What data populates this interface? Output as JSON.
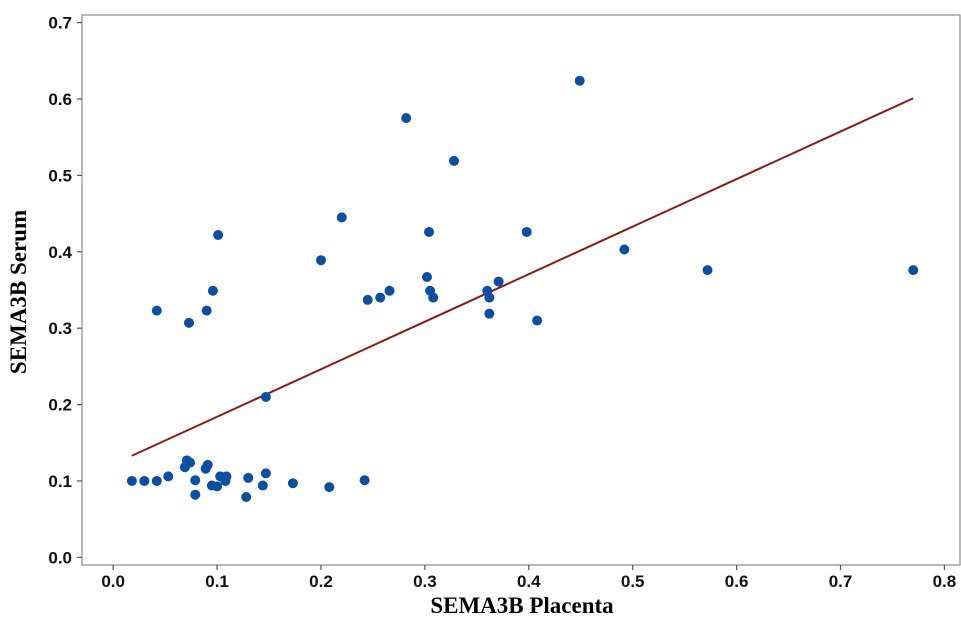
{
  "chart_data": {
    "type": "scatter",
    "title": "",
    "xlabel": "SEMA3B Placenta",
    "ylabel": "SEMA3B Serum",
    "xlim": [
      -0.03,
      0.815
    ],
    "ylim": [
      -0.01,
      0.71
    ],
    "xticks": [
      0.0,
      0.1,
      0.2,
      0.3,
      0.4,
      0.5,
      0.6,
      0.7,
      0.8
    ],
    "xtick_labels": [
      "0.0",
      "0.1",
      "0.2",
      "0.3",
      "0.4",
      "0.5",
      "0.6",
      "0.7",
      "0.8"
    ],
    "yticks": [
      0.0,
      0.1,
      0.2,
      0.3,
      0.4,
      0.5,
      0.6,
      0.7
    ],
    "ytick_labels": [
      "0.0",
      "0.1",
      "0.2",
      "0.3",
      "0.4",
      "0.5",
      "0.6",
      "0.7"
    ],
    "grid": false,
    "legend": "none",
    "point_color": "#0b4fa3",
    "line_color": "#8b1a1a",
    "points": [
      [
        0.449,
        0.624
      ],
      [
        0.282,
        0.575
      ],
      [
        0.328,
        0.519
      ],
      [
        0.22,
        0.445
      ],
      [
        0.304,
        0.426
      ],
      [
        0.398,
        0.426
      ],
      [
        0.101,
        0.422
      ],
      [
        0.492,
        0.403
      ],
      [
        0.2,
        0.389
      ],
      [
        0.572,
        0.376
      ],
      [
        0.77,
        0.376
      ],
      [
        0.302,
        0.367
      ],
      [
        0.371,
        0.361
      ],
      [
        0.266,
        0.349
      ],
      [
        0.305,
        0.349
      ],
      [
        0.36,
        0.349
      ],
      [
        0.096,
        0.349
      ],
      [
        0.257,
        0.34
      ],
      [
        0.245,
        0.337
      ],
      [
        0.308,
        0.34
      ],
      [
        0.362,
        0.34
      ],
      [
        0.042,
        0.323
      ],
      [
        0.09,
        0.323
      ],
      [
        0.362,
        0.319
      ],
      [
        0.073,
        0.307
      ],
      [
        0.408,
        0.31
      ],
      [
        0.147,
        0.21
      ],
      [
        0.071,
        0.127
      ],
      [
        0.074,
        0.124
      ],
      [
        0.069,
        0.118
      ],
      [
        0.091,
        0.121
      ],
      [
        0.089,
        0.116
      ],
      [
        0.018,
        0.1
      ],
      [
        0.03,
        0.1
      ],
      [
        0.042,
        0.1
      ],
      [
        0.053,
        0.106
      ],
      [
        0.079,
        0.101
      ],
      [
        0.103,
        0.106
      ],
      [
        0.109,
        0.106
      ],
      [
        0.108,
        0.1
      ],
      [
        0.13,
        0.104
      ],
      [
        0.147,
        0.11
      ],
      [
        0.095,
        0.094
      ],
      [
        0.1,
        0.093
      ],
      [
        0.144,
        0.094
      ],
      [
        0.173,
        0.097
      ],
      [
        0.208,
        0.092
      ],
      [
        0.242,
        0.101
      ],
      [
        0.079,
        0.082
      ],
      [
        0.128,
        0.079
      ]
    ],
    "fit_line": {
      "x": [
        0.018,
        0.77
      ],
      "y": [
        0.133,
        0.601
      ]
    }
  }
}
